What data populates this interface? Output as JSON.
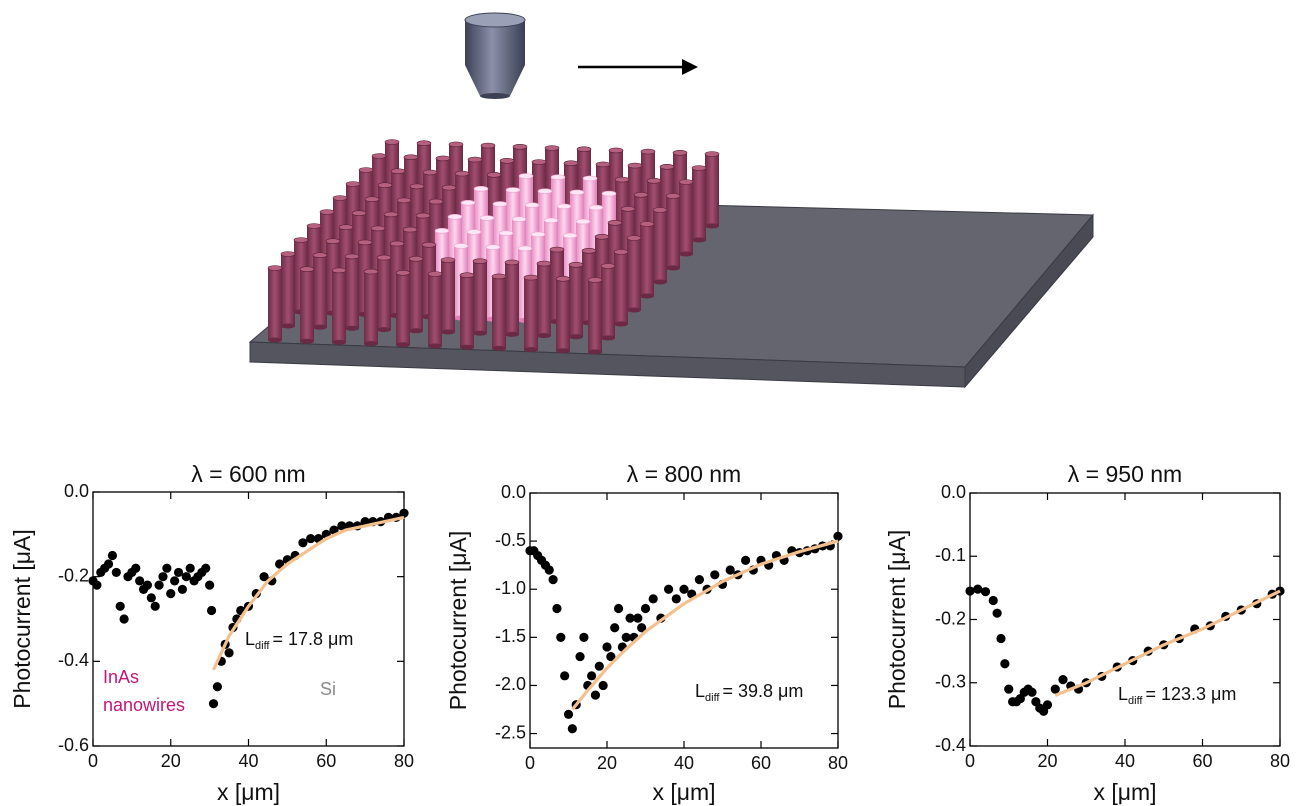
{
  "chart_data": [
    {
      "type": "scatter",
      "title": "λ = 600 nm",
      "x_label": "x [μm]",
      "y_label": "Photocurrent [μA]",
      "xlim": [
        0,
        80
      ],
      "ylim": [
        -0.6,
        0
      ],
      "xticks": [
        0,
        20,
        40,
        60,
        80
      ],
      "yticks": [
        -0.6,
        -0.4,
        -0.2,
        {
          "value": 0,
          "label": "0.0"
        }
      ],
      "series": [
        {
          "mode": "markers",
          "color": "#000000",
          "x": [
            0,
            1,
            2,
            3,
            4,
            5,
            6,
            7,
            8,
            9,
            10,
            11,
            12,
            13,
            14,
            15,
            16,
            17,
            18,
            19,
            20,
            21,
            22,
            23,
            24,
            25,
            26,
            27,
            28,
            29,
            30,
            30.5,
            31,
            32,
            33,
            34,
            35,
            36,
            37,
            38,
            40,
            42,
            44,
            46,
            48,
            50,
            52,
            54,
            56,
            58,
            60,
            62,
            64,
            66,
            68,
            70,
            72,
            74,
            76,
            78,
            80
          ],
          "values": [
            -0.21,
            -0.22,
            -0.19,
            -0.18,
            -0.17,
            -0.15,
            -0.19,
            -0.27,
            -0.3,
            -0.2,
            -0.19,
            -0.18,
            -0.21,
            -0.23,
            -0.22,
            -0.25,
            -0.27,
            -0.22,
            -0.2,
            -0.18,
            -0.24,
            -0.21,
            -0.19,
            -0.23,
            -0.2,
            -0.18,
            -0.21,
            -0.2,
            -0.19,
            -0.18,
            -0.22,
            -0.28,
            -0.5,
            -0.46,
            -0.4,
            -0.36,
            -0.38,
            -0.32,
            -0.3,
            -0.28,
            -0.27,
            -0.24,
            -0.2,
            -0.21,
            -0.17,
            -0.16,
            -0.15,
            -0.12,
            -0.11,
            -0.11,
            -0.1,
            -0.09,
            -0.08,
            -0.08,
            -0.08,
            -0.07,
            -0.07,
            -0.07,
            -0.06,
            -0.06,
            -0.05
          ]
        },
        {
          "mode": "line",
          "color": "#f4c08e",
          "x": [
            31,
            35,
            40,
            45,
            50,
            55,
            60,
            65,
            70,
            75,
            80
          ],
          "values": [
            -0.42,
            -0.34,
            -0.27,
            -0.21,
            -0.17,
            -0.14,
            -0.11,
            -0.09,
            -0.08,
            -0.07,
            -0.06
          ]
        }
      ],
      "annotations": [
        {
          "text": "L",
          "subscript": "diff",
          "suffix": "= 17.8 μm"
        }
      ],
      "labels": [
        {
          "lines": [
            "InAs",
            "nanowires"
          ],
          "color": "#c2167a"
        },
        {
          "lines": [
            "Si"
          ],
          "color": "#8a8a8a"
        }
      ]
    },
    {
      "type": "scatter",
      "title": "λ = 800 nm",
      "x_label": "x [μm]",
      "y_label": "Photocurrent [μA]",
      "xlim": [
        0,
        80
      ],
      "ylim": [
        -2.65,
        0
      ],
      "xticks": [
        0,
        20,
        40,
        60,
        80
      ],
      "yticks": [
        -2.5,
        {
          "value": -2,
          "label": "-2.0"
        },
        -1.5,
        {
          "value": -1,
          "label": "-1.0"
        },
        -0.5,
        {
          "value": 0,
          "label": "0.0"
        }
      ],
      "series": [
        {
          "mode": "markers",
          "color": "#000000",
          "x": [
            0,
            1,
            2,
            3,
            4,
            5,
            6,
            7,
            8,
            9,
            10,
            11,
            12,
            13,
            14,
            15,
            16,
            17,
            18,
            19,
            20,
            21,
            22,
            23,
            24,
            25,
            26,
            27,
            28,
            29,
            30,
            32,
            34,
            36,
            38,
            40,
            42,
            44,
            46,
            48,
            50,
            52,
            54,
            56,
            58,
            60,
            62,
            64,
            66,
            68,
            70,
            72,
            74,
            76,
            78,
            80
          ],
          "values": [
            -0.6,
            -0.6,
            -0.65,
            -0.7,
            -0.75,
            -0.8,
            -0.9,
            -1.2,
            -1.5,
            -1.9,
            -2.3,
            -2.45,
            -2.2,
            -1.7,
            -1.5,
            -2.0,
            -1.9,
            -2.1,
            -1.8,
            -2.0,
            -1.6,
            -1.7,
            -1.4,
            -1.2,
            -1.6,
            -1.5,
            -1.3,
            -1.5,
            -1.3,
            -1.4,
            -1.2,
            -1.1,
            -1.3,
            -1.0,
            -1.1,
            -1.0,
            -1.05,
            -0.9,
            -1.0,
            -0.85,
            -0.95,
            -0.8,
            -0.85,
            -0.7,
            -0.8,
            -0.7,
            -0.75,
            -0.65,
            -0.7,
            -0.6,
            -0.62,
            -0.6,
            -0.58,
            -0.55,
            -0.55,
            -0.45
          ]
        },
        {
          "mode": "line",
          "color": "#f4c08e",
          "x": [
            11,
            15,
            20,
            25,
            30,
            40,
            50,
            60,
            70,
            80
          ],
          "values": [
            -2.25,
            -2.05,
            -1.82,
            -1.62,
            -1.44,
            -1.15,
            -0.92,
            -0.74,
            -0.61,
            -0.5
          ]
        }
      ],
      "annotations": [
        {
          "text": "L",
          "subscript": "diff",
          "suffix": "= 39.8 μm"
        }
      ]
    },
    {
      "type": "scatter",
      "title": "λ = 950 nm",
      "x_label": "x [μm]",
      "y_label": "Photocurrent [μA]",
      "xlim": [
        0,
        80
      ],
      "ylim": [
        -0.4,
        0
      ],
      "xticks": [
        0,
        20,
        40,
        60,
        80
      ],
      "yticks": [
        -0.4,
        -0.3,
        -0.2,
        -0.1,
        {
          "value": 0,
          "label": "0.0"
        }
      ],
      "series": [
        {
          "mode": "markers",
          "color": "#000000",
          "x": [
            0,
            2,
            4,
            6,
            7,
            8,
            9,
            10,
            11,
            12,
            13,
            14,
            15,
            16,
            17,
            18,
            19,
            20,
            22,
            24,
            26,
            28,
            30,
            34,
            38,
            42,
            46,
            50,
            54,
            58,
            62,
            66,
            70,
            74,
            78,
            80
          ],
          "values": [
            -0.155,
            -0.152,
            -0.156,
            -0.17,
            -0.19,
            -0.23,
            -0.27,
            -0.31,
            -0.33,
            -0.33,
            -0.325,
            -0.315,
            -0.31,
            -0.315,
            -0.33,
            -0.34,
            -0.345,
            -0.335,
            -0.31,
            -0.295,
            -0.305,
            -0.31,
            -0.3,
            -0.29,
            -0.275,
            -0.265,
            -0.25,
            -0.24,
            -0.23,
            -0.215,
            -0.21,
            -0.195,
            -0.185,
            -0.175,
            -0.16,
            -0.155
          ]
        },
        {
          "mode": "line",
          "color": "#f4c08e",
          "x": [
            22,
            30,
            40,
            50,
            60,
            70,
            80
          ],
          "values": [
            -0.32,
            -0.3,
            -0.27,
            -0.24,
            -0.215,
            -0.185,
            -0.155
          ]
        }
      ],
      "annotations": [
        {
          "text": "L",
          "subscript": "diff",
          "suffix": "= 123.3 μm"
        }
      ]
    }
  ]
}
